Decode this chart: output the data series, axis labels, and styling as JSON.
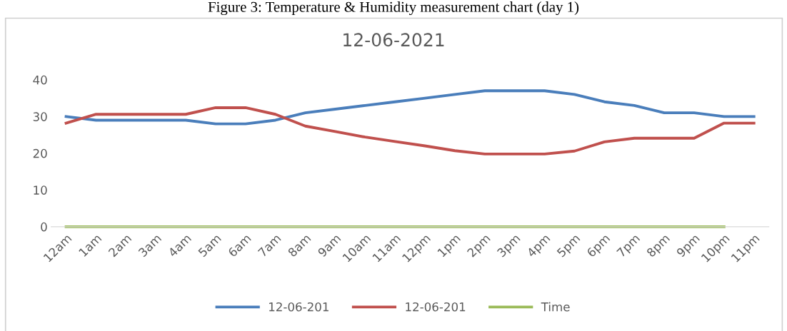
{
  "chart_data": {
    "type": "line",
    "title": "12-06-2021",
    "annotations": [
      "Figure 3: Temperature & Humidity measurement chart (day 1)"
    ],
    "categories": [
      "12am",
      "1am",
      "2am",
      "3am",
      "4am",
      "5am",
      "6am",
      "7am",
      "8am",
      "9am",
      "10am",
      "11am",
      "12pm",
      "1pm",
      "2pm",
      "3pm",
      "4pm",
      "5pm",
      "6pm",
      "7pm",
      "8pm",
      "9pm",
      "10pm",
      "11pm"
    ],
    "series": [
      {
        "name": "12-06-201",
        "color": "#4a7ebb",
        "values": [
          30,
          29,
          29,
          29,
          29,
          28,
          28,
          29,
          31,
          32,
          33,
          34,
          35,
          36,
          37,
          37,
          37,
          36,
          34,
          33,
          31,
          31,
          30,
          30
        ]
      },
      {
        "name": "12-06-201",
        "color": "#c0504d",
        "values": [
          28.2,
          30.6,
          30.6,
          30.6,
          30.6,
          32.4,
          32.4,
          30.6,
          27.4,
          25.9,
          24.4,
          23.2,
          22,
          20.7,
          19.8,
          19.8,
          19.8,
          20.6,
          23.1,
          24.1,
          24.1,
          24.1,
          28.2,
          28.2
        ]
      },
      {
        "name": "Time",
        "color": "#9bbb59",
        "values": [
          0,
          0,
          0,
          0,
          0,
          0,
          0,
          0,
          0,
          0,
          0,
          0,
          0,
          0,
          0,
          0,
          0,
          0,
          0,
          0,
          0,
          0,
          0,
          null
        ]
      }
    ],
    "ylim": [
      0,
      40
    ],
    "yticks": [
      0,
      10,
      20,
      30,
      40
    ],
    "grid": false,
    "legend": "bottom",
    "marker": "none",
    "line_style": "solid"
  }
}
